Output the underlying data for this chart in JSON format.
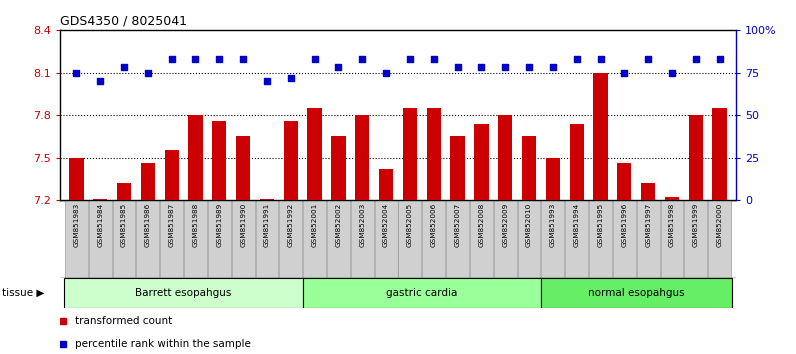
{
  "title": "GDS4350 / 8025041",
  "samples": [
    "GSM851983",
    "GSM851984",
    "GSM851985",
    "GSM851986",
    "GSM851987",
    "GSM851988",
    "GSM851989",
    "GSM851990",
    "GSM851991",
    "GSM851992",
    "GSM852001",
    "GSM852002",
    "GSM852003",
    "GSM852004",
    "GSM852005",
    "GSM852006",
    "GSM852007",
    "GSM852008",
    "GSM852009",
    "GSM852010",
    "GSM851993",
    "GSM851994",
    "GSM851995",
    "GSM851996",
    "GSM851997",
    "GSM851998",
    "GSM851999",
    "GSM852000"
  ],
  "transformed_count": [
    7.5,
    7.21,
    7.32,
    7.46,
    7.55,
    7.8,
    7.76,
    7.65,
    7.21,
    7.76,
    7.85,
    7.65,
    7.8,
    7.42,
    7.85,
    7.85,
    7.65,
    7.74,
    7.8,
    7.65,
    7.5,
    7.74,
    8.1,
    7.46,
    7.32,
    7.22,
    7.8,
    7.85
  ],
  "percentile_rank": [
    75,
    70,
    78,
    75,
    83,
    83,
    83,
    83,
    70,
    72,
    83,
    78,
    83,
    75,
    83,
    83,
    78,
    78,
    78,
    78,
    78,
    83,
    83,
    75,
    83,
    75,
    83,
    83
  ],
  "tissue_groups": [
    {
      "label": "Barrett esopahgus",
      "start": 0,
      "end": 9,
      "color": "#ccffcc"
    },
    {
      "label": "gastric cardia",
      "start": 10,
      "end": 19,
      "color": "#99ff99"
    },
    {
      "label": "normal esopahgus",
      "start": 20,
      "end": 27,
      "color": "#66ee66"
    }
  ],
  "ylim_left": [
    7.2,
    8.4
  ],
  "ylim_right": [
    0,
    100
  ],
  "yticks_left": [
    7.2,
    7.5,
    7.8,
    8.1,
    8.4
  ],
  "yticks_right": [
    0,
    25,
    50,
    75,
    100
  ],
  "ytick_labels_right": [
    "0",
    "25",
    "50",
    "75",
    "100%"
  ],
  "bar_color": "#cc0000",
  "dot_color": "#0000cc",
  "legend_items": [
    {
      "label": "transformed count",
      "color": "#cc0000"
    },
    {
      "label": "percentile rank within the sample",
      "color": "#0000cc"
    }
  ],
  "tissue_label": "tissue ▶",
  "hline_values": [
    7.5,
    7.8,
    8.1
  ],
  "xtick_bg_color": "#d0d0d0",
  "plot_bg_color": "#ffffff",
  "border_color": "#000000"
}
